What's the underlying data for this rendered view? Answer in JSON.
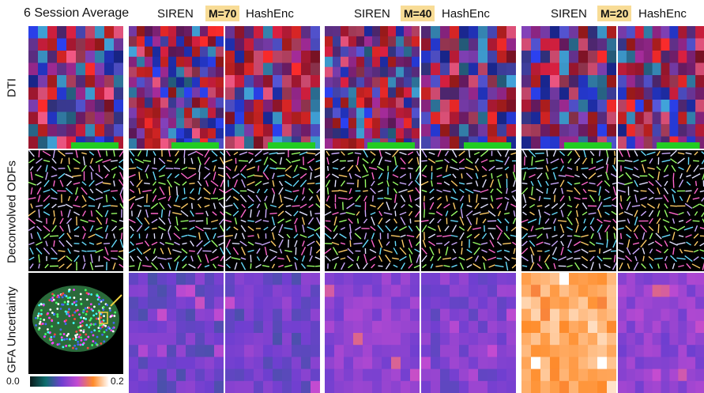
{
  "columns": {
    "reference": "6 Session Average",
    "groups": [
      {
        "left": "SIREN",
        "badge": "M=70",
        "right": "HashEnc"
      },
      {
        "left": "SIREN",
        "badge": "M=40",
        "right": "HashEnc"
      },
      {
        "left": "SIREN",
        "badge": "M=20",
        "right": "HashEnc"
      }
    ]
  },
  "rows": [
    "DTI",
    "Deconvolved ODFs",
    "GFA Uncertainty"
  ],
  "colorbar": {
    "min": "0.0",
    "max": "0.2",
    "colors": [
      "#0a1a1a",
      "#0e6e6e",
      "#6f3fd0",
      "#c34bd1",
      "#ff8c2a",
      "#ffffff"
    ]
  },
  "uncertainty_level": {
    "reference": 0.0,
    "m70_siren": 0.04,
    "m70_hashenc": 0.04,
    "m40_siren": 0.06,
    "m40_hashenc": 0.05,
    "m20_siren": 0.16,
    "m20_hashenc": 0.06
  },
  "annotations": {
    "roi_box_color": "#f0d040",
    "arrow_color": "#f0d040"
  }
}
